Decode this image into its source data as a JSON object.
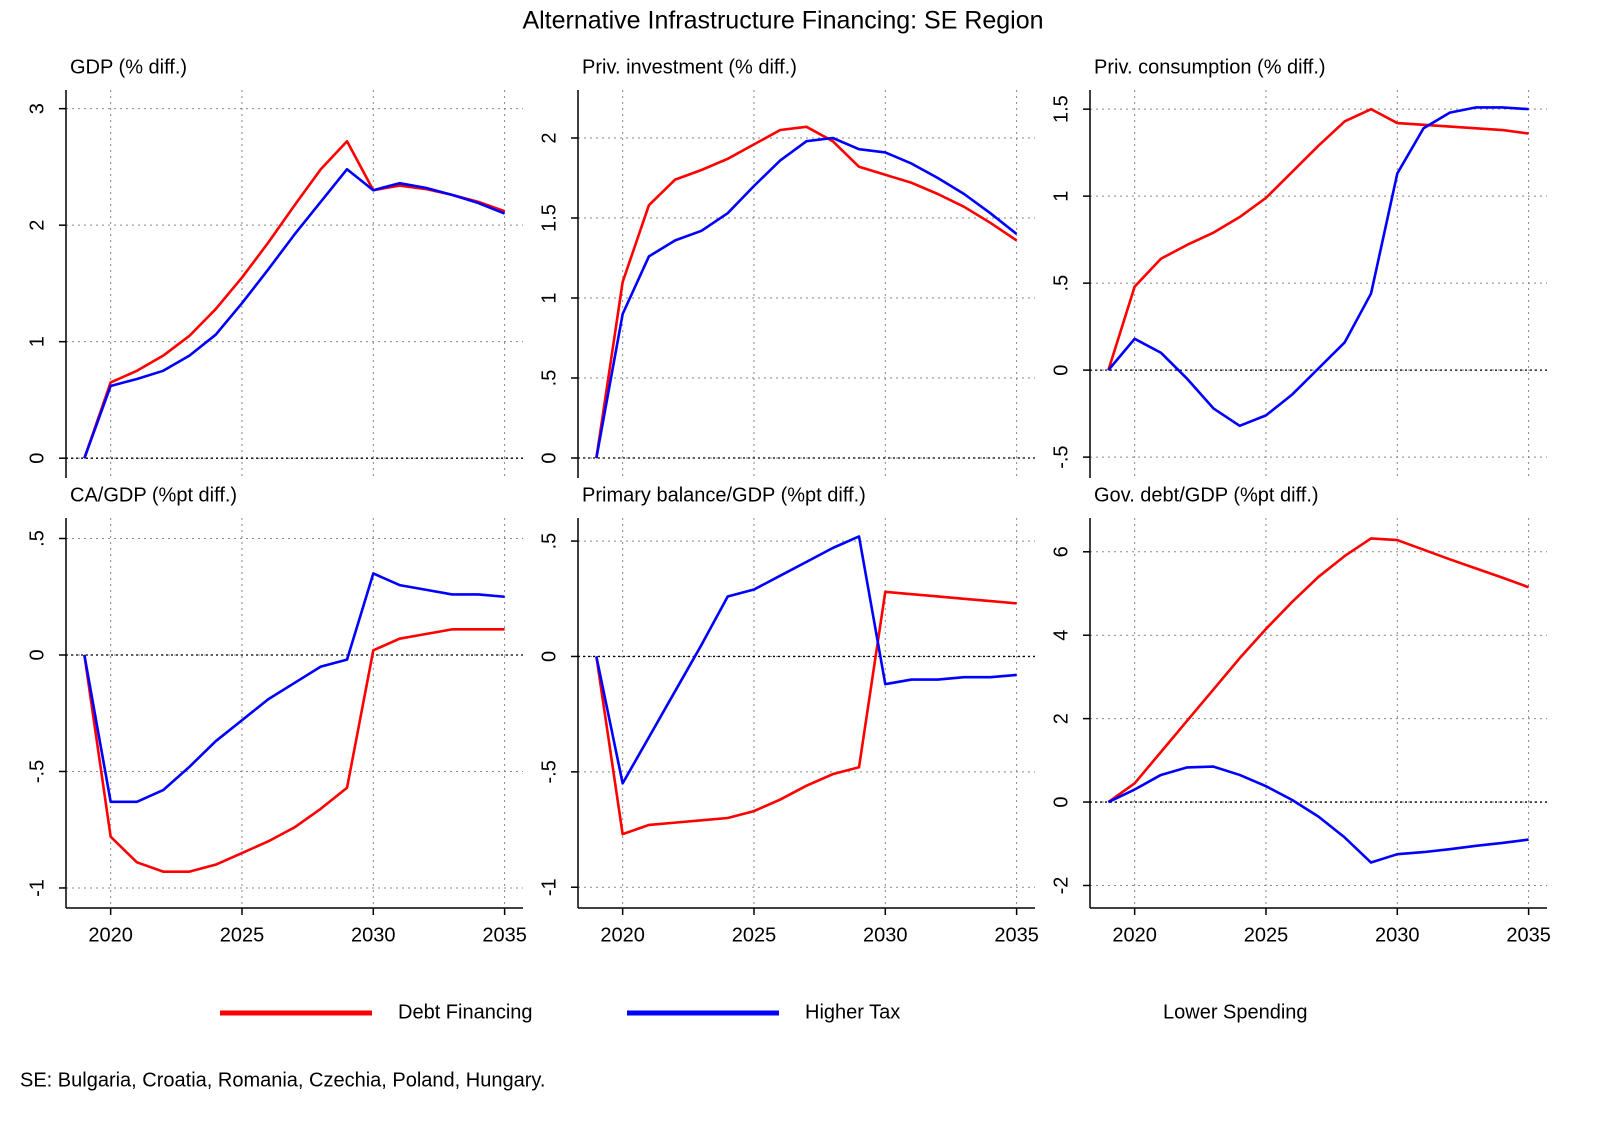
{
  "title": "Alternative Infrastructure Financing: SE Region",
  "legend": [
    {
      "name": "Debt Financing",
      "color": "#ff0000"
    },
    {
      "name": "Higher Tax",
      "color": "#0000ff"
    },
    {
      "name": "Lower Spending",
      "color": "#ffffff"
    }
  ],
  "note": "SE: Bulgaria, Croatia, Romania, Czechia, Poland, Hungary.",
  "chart_data": [
    {
      "type": "line",
      "title": "GDP (% diff.)",
      "show_xaxis": false,
      "grid": true,
      "hline": 0,
      "x": [
        2019,
        2020,
        2021,
        2022,
        2023,
        2024,
        2025,
        2026,
        2027,
        2028,
        2029,
        2030,
        2031,
        2032,
        2033,
        2034,
        2035
      ],
      "xlim": [
        2018.3,
        2035.7
      ],
      "xticks": [
        2020,
        2025,
        2030,
        2035
      ],
      "ylim": [
        -0.17,
        3.16
      ],
      "yticks": [
        0,
        1,
        2,
        3
      ],
      "series": [
        {
          "color": "#ff0000",
          "values": [
            0,
            0.65,
            0.75,
            0.88,
            1.05,
            1.28,
            1.55,
            1.85,
            2.17,
            2.48,
            2.72,
            2.3,
            2.34,
            2.31,
            2.26,
            2.2,
            2.12
          ]
        },
        {
          "color": "#0000ff",
          "values": [
            0,
            0.62,
            0.68,
            0.75,
            0.88,
            1.06,
            1.33,
            1.62,
            1.92,
            2.2,
            2.48,
            2.3,
            2.36,
            2.32,
            2.26,
            2.19,
            2.1
          ]
        }
      ]
    },
    {
      "type": "line",
      "title": "Priv. investment (% diff.)",
      "show_xaxis": false,
      "grid": true,
      "hline": 0,
      "x": [
        2019,
        2020,
        2021,
        2022,
        2023,
        2024,
        2025,
        2026,
        2027,
        2028,
        2029,
        2030,
        2031,
        2032,
        2033,
        2034,
        2035
      ],
      "xlim": [
        2018.3,
        2035.7
      ],
      "xticks": [
        2020,
        2025,
        2030,
        2035
      ],
      "ylim": [
        -0.125,
        2.3
      ],
      "yticks": [
        0,
        {
          "value": 0.5,
          "label": ".5"
        },
        1,
        1.5,
        2
      ],
      "series": [
        {
          "color": "#ff0000",
          "values": [
            0,
            1.1,
            1.58,
            1.74,
            1.8,
            1.87,
            1.96,
            2.05,
            2.07,
            1.98,
            1.82,
            1.77,
            1.72,
            1.65,
            1.57,
            1.47,
            1.36
          ]
        },
        {
          "color": "#0000ff",
          "values": [
            0,
            0.9,
            1.26,
            1.36,
            1.42,
            1.53,
            1.7,
            1.86,
            1.98,
            2.0,
            1.93,
            1.91,
            1.84,
            1.75,
            1.65,
            1.53,
            1.4
          ]
        }
      ]
    },
    {
      "type": "line",
      "title": "Priv. consumption (% diff.)",
      "show_xaxis": false,
      "grid": true,
      "hline": 0,
      "x": [
        2019,
        2020,
        2021,
        2022,
        2023,
        2024,
        2025,
        2026,
        2027,
        2028,
        2029,
        2030,
        2031,
        2032,
        2033,
        2034,
        2035
      ],
      "xlim": [
        2018.3,
        2035.7
      ],
      "xticks": [
        2020,
        2025,
        2030,
        2035
      ],
      "ylim": [
        -0.62,
        1.61
      ],
      "yticks": [
        {
          "value": -0.5,
          "label": "-.5"
        },
        0,
        {
          "value": 0.5,
          "label": ".5"
        },
        1,
        1.5
      ],
      "series": [
        {
          "color": "#ff0000",
          "values": [
            0,
            0.48,
            0.64,
            0.72,
            0.79,
            0.88,
            0.99,
            1.14,
            1.29,
            1.43,
            1.5,
            1.42,
            1.41,
            1.4,
            1.39,
            1.38,
            1.36
          ]
        },
        {
          "color": "#0000ff",
          "values": [
            0,
            0.18,
            0.1,
            -0.05,
            -0.22,
            -0.32,
            -0.26,
            -0.14,
            0.01,
            0.16,
            0.44,
            1.13,
            1.39,
            1.48,
            1.51,
            1.51,
            1.5
          ]
        }
      ]
    },
    {
      "type": "line",
      "title": "CA/GDP (%pt diff.)",
      "show_xaxis": true,
      "grid": true,
      "hline": 0,
      "x": [
        2019,
        2020,
        2021,
        2022,
        2023,
        2024,
        2025,
        2026,
        2027,
        2028,
        2029,
        2030,
        2031,
        2032,
        2033,
        2034,
        2035
      ],
      "xlim": [
        2018.3,
        2035.7
      ],
      "xticks": [
        2020,
        2025,
        2030,
        2035
      ],
      "ylim": [
        -1.086,
        0.588
      ],
      "yticks": [
        -1,
        {
          "value": -0.5,
          "label": "-.5"
        },
        0,
        {
          "value": 0.5,
          "label": ".5"
        }
      ],
      "series": [
        {
          "color": "#ff0000",
          "values": [
            0,
            -0.78,
            -0.89,
            -0.93,
            -0.93,
            -0.9,
            -0.85,
            -0.8,
            -0.74,
            -0.66,
            -0.57,
            0.02,
            0.07,
            0.09,
            0.11,
            0.11,
            0.11
          ]
        },
        {
          "color": "#0000ff",
          "values": [
            0,
            -0.63,
            -0.63,
            -0.58,
            -0.48,
            -0.37,
            -0.28,
            -0.19,
            -0.12,
            -0.05,
            -0.02,
            0.35,
            0.3,
            0.28,
            0.26,
            0.26,
            0.25
          ]
        }
      ]
    },
    {
      "type": "line",
      "title": "Primary balance/GDP (%pt diff.)",
      "show_xaxis": true,
      "grid": true,
      "hline": 0,
      "x": [
        2019,
        2020,
        2021,
        2022,
        2023,
        2024,
        2025,
        2026,
        2027,
        2028,
        2029,
        2030,
        2031,
        2032,
        2033,
        2034,
        2035
      ],
      "xlim": [
        2018.3,
        2035.7
      ],
      "xticks": [
        2020,
        2025,
        2030,
        2035
      ],
      "ylim": [
        -1.09,
        0.6
      ],
      "yticks": [
        -1,
        {
          "value": -0.5,
          "label": "-.5"
        },
        0,
        {
          "value": 0.5,
          "label": ".5"
        }
      ],
      "series": [
        {
          "color": "#ff0000",
          "values": [
            0,
            -0.77,
            -0.73,
            -0.72,
            -0.71,
            -0.7,
            -0.67,
            -0.62,
            -0.56,
            -0.51,
            -0.48,
            0.28,
            0.27,
            0.26,
            0.25,
            0.24,
            0.23
          ]
        },
        {
          "color": "#0000ff",
          "values": [
            0,
            -0.55,
            -0.35,
            -0.15,
            0.05,
            0.26,
            0.29,
            0.35,
            0.41,
            0.47,
            0.52,
            -0.12,
            -0.1,
            -0.1,
            -0.09,
            -0.09,
            -0.08
          ]
        }
      ]
    },
    {
      "type": "line",
      "title": "Gov. debt/GDP (%pt diff.)",
      "show_xaxis": true,
      "grid": true,
      "hline": 0,
      "x": [
        2019,
        2020,
        2021,
        2022,
        2023,
        2024,
        2025,
        2026,
        2027,
        2028,
        2029,
        2030,
        2031,
        2032,
        2033,
        2034,
        2035
      ],
      "xlim": [
        2018.3,
        2035.7
      ],
      "xticks": [
        2020,
        2025,
        2030,
        2035
      ],
      "ylim": [
        -2.54,
        6.81
      ],
      "yticks": [
        -2,
        0,
        2,
        4,
        6
      ],
      "series": [
        {
          "color": "#ff0000",
          "values": [
            0,
            0.45,
            1.2,
            1.95,
            2.7,
            3.45,
            4.15,
            4.8,
            5.4,
            5.9,
            6.32,
            6.28,
            6.05,
            5.82,
            5.6,
            5.38,
            5.15
          ]
        },
        {
          "color": "#0000ff",
          "values": [
            0,
            0.3,
            0.65,
            0.83,
            0.85,
            0.65,
            0.38,
            0.05,
            -0.35,
            -0.85,
            -1.45,
            -1.25,
            -1.2,
            -1.13,
            -1.05,
            -0.98,
            -0.9
          ]
        }
      ]
    }
  ]
}
